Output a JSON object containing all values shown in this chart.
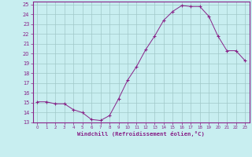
{
  "x": [
    0,
    1,
    2,
    3,
    4,
    5,
    6,
    7,
    8,
    9,
    10,
    11,
    12,
    13,
    14,
    15,
    16,
    17,
    18,
    19,
    20,
    21,
    22,
    23
  ],
  "y": [
    15.1,
    15.1,
    14.9,
    14.9,
    14.3,
    14.0,
    13.3,
    13.2,
    13.7,
    15.4,
    17.3,
    18.7,
    20.4,
    21.8,
    23.4,
    24.3,
    24.9,
    24.8,
    24.8,
    23.8,
    21.8,
    20.3,
    20.3,
    19.3
  ],
  "line_color": "#882288",
  "marker": "+",
  "marker_size": 3.5,
  "bg_color": "#c8eef0",
  "grid_color": "#a0c8c8",
  "xlabel": "Windchill (Refroidissement éolien,°C)",
  "xlabel_color": "#882288",
  "tick_color": "#882288",
  "spine_color": "#882288",
  "ylim": [
    13,
    25
  ],
  "xlim": [
    -0.5,
    23.5
  ],
  "yticks": [
    13,
    14,
    15,
    16,
    17,
    18,
    19,
    20,
    21,
    22,
    23,
    24,
    25
  ],
  "xticks": [
    0,
    1,
    2,
    3,
    4,
    5,
    6,
    7,
    8,
    9,
    10,
    11,
    12,
    13,
    14,
    15,
    16,
    17,
    18,
    19,
    20,
    21,
    22,
    23
  ]
}
